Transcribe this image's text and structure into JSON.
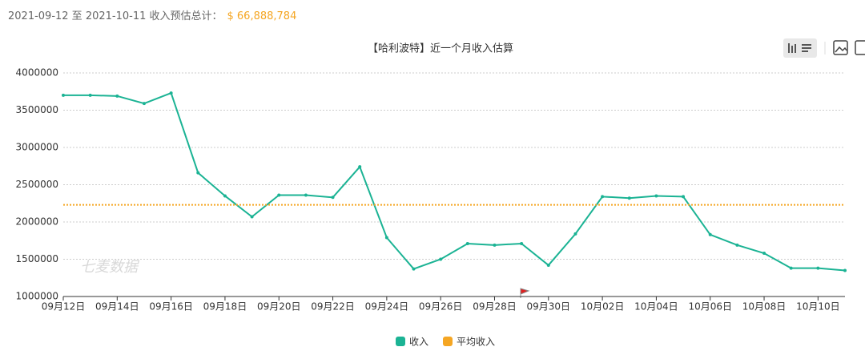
{
  "header": {
    "label": "2021-09-12 至 2021-10-11 收入预估总计：",
    "total": "$ 66,888,784"
  },
  "chart_data": {
    "type": "line",
    "title": "【哈利波特】近一个月收入估算",
    "watermark": "七麦数据",
    "categories": [
      "09月12日",
      null,
      "09月14日",
      null,
      "09月16日",
      null,
      "09月18日",
      null,
      "09月20日",
      null,
      "09月22日",
      null,
      "09月24日",
      null,
      "09月26日",
      null,
      "09月28日",
      null,
      "09月30日",
      null,
      "10月02日",
      null,
      "10月04日",
      null,
      "10月06日",
      null,
      "10月08日",
      null,
      "10月10日",
      null
    ],
    "series": [
      {
        "name": "收入",
        "color": "#1bb394",
        "values": [
          3700000,
          3700000,
          3690000,
          3590000,
          3730000,
          2660000,
          2350000,
          2070000,
          2360000,
          2360000,
          2330000,
          2740000,
          1790000,
          1370000,
          1500000,
          1710000,
          1690000,
          1710000,
          1420000,
          1840000,
          2340000,
          2320000,
          2350000,
          2340000,
          1830000,
          1690000,
          1580000,
          1380000,
          1380000,
          1350000
        ]
      },
      {
        "name": "平均收入",
        "color": "#f5a623",
        "value": 2229626
      }
    ],
    "ylim": [
      1000000,
      4000000
    ],
    "yticks": [
      1000000,
      1500000,
      2000000,
      2500000,
      3000000,
      3500000,
      4000000
    ],
    "grid": true
  }
}
